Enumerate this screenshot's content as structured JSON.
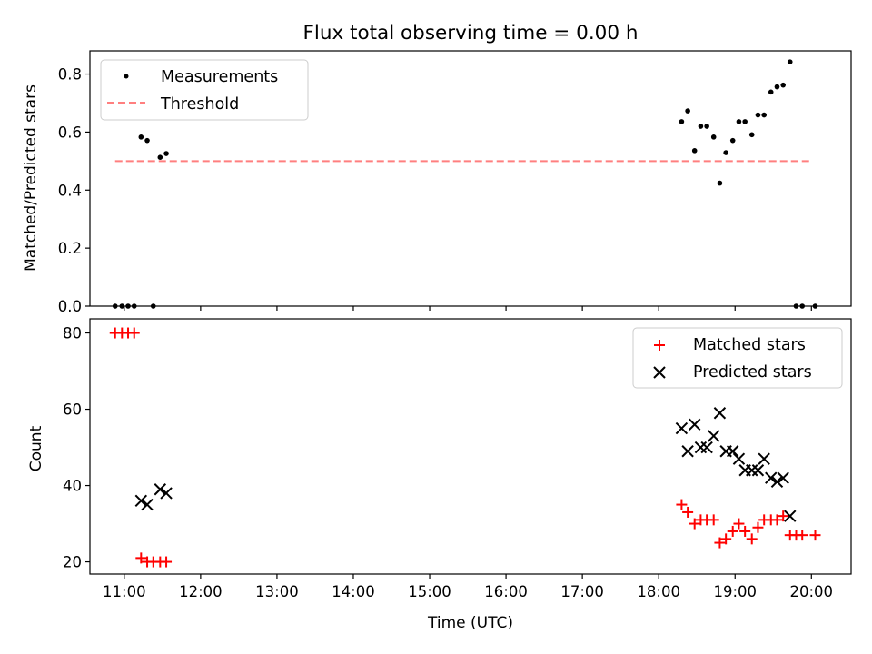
{
  "chart_data": [
    {
      "type": "scatter",
      "title": "Flux total observing time = 0.00 h",
      "xlabel": "",
      "ylabel": "Matched/Predicted stars",
      "ylim": [
        0,
        0.88
      ],
      "yticks": [
        0.0,
        0.2,
        0.4,
        0.6,
        0.8
      ],
      "ytick_labels": [
        "0.0",
        "0.2",
        "0.4",
        "0.6",
        "0.8"
      ],
      "xlim": [
        10.55,
        20.52
      ],
      "grid": false,
      "legend": "top-left",
      "series": [
        {
          "name": "Measurements",
          "marker": "dot",
          "color": "#000000",
          "x": [
            10.88,
            10.97,
            11.05,
            11.13,
            11.22,
            11.3,
            11.38,
            11.47,
            11.55,
            18.3,
            18.38,
            18.47,
            18.55,
            18.63,
            18.72,
            18.8,
            18.88,
            18.97,
            19.05,
            19.13,
            19.22,
            19.3,
            19.38,
            19.47,
            19.55,
            19.63,
            19.72,
            19.8,
            19.88,
            20.05
          ],
          "y": [
            0,
            0,
            0,
            0,
            0.583,
            0.571,
            0,
            0.513,
            0.526,
            0.636,
            0.673,
            0.536,
            0.62,
            0.62,
            0.583,
            0.424,
            0.529,
            0.571,
            0.636,
            0.636,
            0.591,
            0.659,
            0.659,
            0.738,
            0.756,
            0.762,
            0.842,
            0,
            0,
            0
          ]
        },
        {
          "name": "Threshold",
          "marker": "dashed-line",
          "color": "#ff7f7f",
          "x": [
            10.88,
            20.0
          ],
          "y": [
            0.5,
            0.5
          ]
        }
      ]
    },
    {
      "type": "scatter",
      "title": "",
      "xlabel": "Time (UTC)",
      "ylabel": "Count",
      "ylim": [
        16.8,
        83.7
      ],
      "yticks": [
        20,
        40,
        60,
        80
      ],
      "ytick_labels": [
        "20",
        "40",
        "60",
        "80"
      ],
      "xlim": [
        10.55,
        20.52
      ],
      "xticks": [
        11,
        12,
        13,
        14,
        15,
        16,
        17,
        18,
        19,
        20
      ],
      "xtick_labels": [
        "11:00",
        "12:00",
        "13:00",
        "14:00",
        "15:00",
        "16:00",
        "17:00",
        "18:00",
        "19:00",
        "20:00"
      ],
      "grid": false,
      "legend": "top-right",
      "series": [
        {
          "name": "Matched stars",
          "marker": "plus",
          "color": "#ff0000",
          "x": [
            10.88,
            10.97,
            11.05,
            11.13,
            11.22,
            11.3,
            11.38,
            11.47,
            11.55,
            18.3,
            18.38,
            18.47,
            18.55,
            18.63,
            18.72,
            18.8,
            18.88,
            18.97,
            19.05,
            19.13,
            19.22,
            19.3,
            19.38,
            19.47,
            19.55,
            19.63,
            19.72,
            19.8,
            19.88,
            20.05
          ],
          "y": [
            80,
            80,
            80,
            80,
            21,
            20,
            20,
            20,
            20,
            35,
            33,
            30,
            31,
            31,
            31,
            25,
            26,
            28,
            30,
            28,
            26,
            29,
            31,
            31,
            31,
            32,
            27,
            27,
            27,
            27
          ]
        },
        {
          "name": "Predicted stars",
          "marker": "x",
          "color": "#000000",
          "x": [
            11.22,
            11.3,
            11.47,
            11.55,
            18.3,
            18.38,
            18.47,
            18.55,
            18.63,
            18.72,
            18.8,
            18.88,
            18.97,
            19.05,
            19.13,
            19.22,
            19.3,
            19.38,
            19.47,
            19.55,
            19.63,
            19.72
          ],
          "y": [
            36,
            35,
            39,
            38,
            55,
            49,
            56,
            50,
            50,
            53,
            59,
            49,
            49,
            47,
            44,
            44,
            44,
            47,
            42,
            41,
            42,
            32
          ]
        }
      ]
    }
  ]
}
